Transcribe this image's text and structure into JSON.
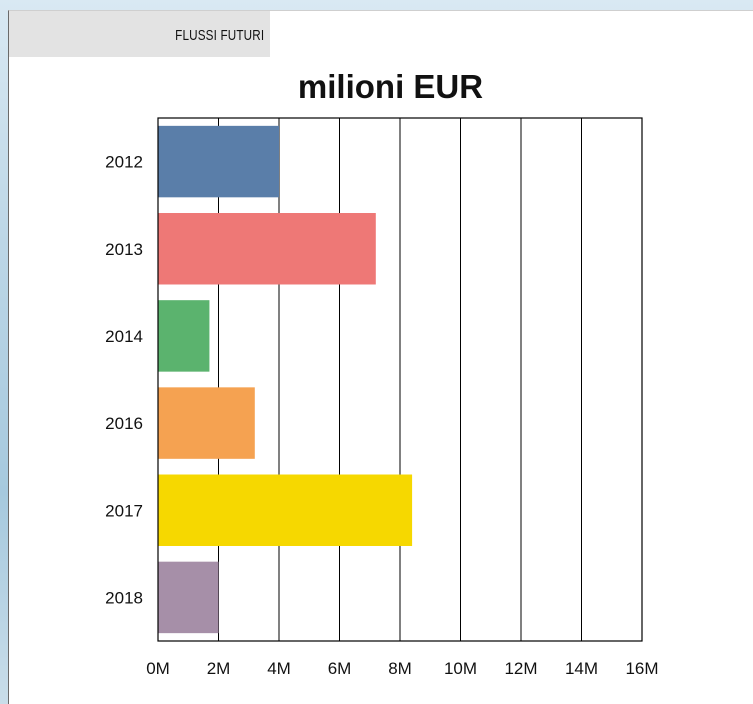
{
  "header": {
    "tab_label": "FLUSSI FUTURI"
  },
  "chart_data": {
    "type": "bar",
    "orientation": "horizontal",
    "title": "milioni EUR",
    "categories": [
      "2012",
      "2013",
      "2014",
      "2016",
      "2017",
      "2018"
    ],
    "values": [
      4.0,
      7.2,
      1.7,
      3.2,
      8.4,
      2.0
    ],
    "colors": [
      "#5a7ea9",
      "#ee7876",
      "#5bb36e",
      "#f5a251",
      "#f6d800",
      "#a68fa8"
    ],
    "x_ticks": [
      "0M",
      "2M",
      "4M",
      "6M",
      "8M",
      "10M",
      "12M",
      "14M",
      "16M"
    ],
    "xlim": [
      0,
      16
    ],
    "grid": "vertical",
    "legend": "none",
    "xlabel": "",
    "ylabel": ""
  }
}
